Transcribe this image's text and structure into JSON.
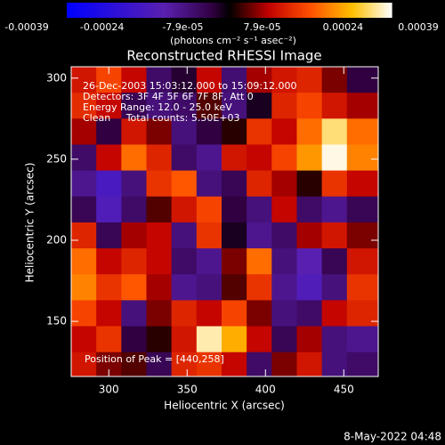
{
  "chart_data": {
    "type": "heatmap",
    "title": "Reconstructed RHESSI Image",
    "annotations": [
      "26-Dec-2003 15:03:12.000 to 15:09:12.000",
      "Detectors: 3F 4F 5F 6F 7F 8F, Att 0",
      "Energy Range: 12.0 - 25.0 keV",
      "Clean     Total counts: 5.50E+03"
    ],
    "peak_label": "Position of Peak = [440,258]",
    "x_label": "Heliocentric X (arcsec)",
    "y_label": "Heliocentric Y (arcsec)",
    "colorbar_label": "(photons cm⁻² s⁻¹ asec⁻²)",
    "timestamp": "8-May-2022 04:48",
    "x": [
      284,
      300,
      316,
      332,
      348,
      364,
      380,
      396,
      412,
      428,
      444,
      460
    ],
    "y": [
      299,
      283,
      267,
      251,
      235,
      219,
      203,
      187,
      171,
      155,
      139,
      123
    ],
    "z": [
      [
        0.00012,
        0.00018,
        0.0001,
        -8e-05,
        -3e-05,
        0.0001,
        -9e-05,
        8e-05,
        0.00012,
        0.00014,
        6e-05,
        -4e-05
      ],
      [
        0.00015,
        0.0001,
        -6e-05,
        -0.0001,
        -8e-05,
        4e-05,
        -0.0001,
        -2e-05,
        0.00014,
        0.00018,
        0.00012,
        8e-05
      ],
      [
        8e-05,
        -4e-05,
        0.00012,
        6e-05,
        -0.0001,
        -4e-05,
        2e-05,
        0.00016,
        0.0001,
        0.00022,
        0.00034,
        0.00022
      ],
      [
        -8e-05,
        0.0001,
        0.00022,
        0.00014,
        -8e-05,
        -0.00012,
        0.00012,
        0.0001,
        0.00018,
        0.00026,
        0.00038,
        0.00024
      ],
      [
        -0.00012,
        -0.0002,
        -0.0001,
        0.00016,
        0.0002,
        -0.0001,
        -6e-05,
        0.00014,
        8e-05,
        2e-05,
        0.00016,
        0.0001
      ],
      [
        -6e-05,
        -0.00018,
        -8e-05,
        4e-05,
        0.00012,
        0.00018,
        -4e-05,
        -0.0001,
        0.0001,
        -8e-05,
        -0.00012,
        -6e-05
      ],
      [
        0.00014,
        -6e-05,
        8e-05,
        0.0001,
        -0.0001,
        0.00016,
        -2e-05,
        -0.00012,
        -8e-05,
        8e-05,
        0.00012,
        6e-05
      ],
      [
        0.00022,
        0.0001,
        0.00014,
        0.0001,
        -8e-05,
        -0.00012,
        6e-05,
        0.00022,
        -0.0001,
        -0.00016,
        -6e-05,
        0.00012
      ],
      [
        0.00024,
        0.00016,
        0.0002,
        8e-05,
        -0.00012,
        -0.0001,
        4e-05,
        0.00016,
        -0.00012,
        -0.00018,
        -0.0001,
        0.00016
      ],
      [
        0.00018,
        0.0001,
        -0.0001,
        6e-05,
        0.00014,
        0.0001,
        0.00018,
        6e-05,
        -0.0001,
        -8e-05,
        0.0001,
        0.00014
      ],
      [
        0.0001,
        0.00016,
        -4e-05,
        2e-05,
        0.00012,
        0.00036,
        0.00028,
        0.0001,
        -6e-05,
        8e-05,
        -0.0001,
        -0.00012
      ],
      [
        0.00012,
        6e-05,
        4e-05,
        -6e-05,
        0.00014,
        0.00016,
        0.0001,
        -8e-05,
        6e-05,
        0.00012,
        -0.0001,
        -8e-05
      ]
    ],
    "xlim": [
      276,
      472
    ],
    "ylim": [
      116,
      307
    ],
    "xticks": [
      300,
      350,
      400,
      450
    ],
    "yticks": [
      150,
      200,
      250,
      300
    ],
    "clim": [
      -0.00039,
      0.00039
    ],
    "cticks": [
      -0.00039,
      -0.00024,
      {
        "value": -7.9e-05,
        "label": "-7.9e-05"
      },
      {
        "value": 7.9e-05,
        "label": "7.9e-05"
      },
      0.00024,
      0.00039
    ],
    "colorscale": [
      [
        0,
        "#0000ff"
      ],
      [
        0.3,
        "#5a20b0"
      ],
      [
        0.45,
        "#300040"
      ],
      [
        0.5,
        "#000000"
      ],
      [
        0.62,
        "#c00000"
      ],
      [
        0.75,
        "#ff5000"
      ],
      [
        0.88,
        "#ffc000"
      ],
      [
        1,
        "#ffffff"
      ]
    ]
  }
}
